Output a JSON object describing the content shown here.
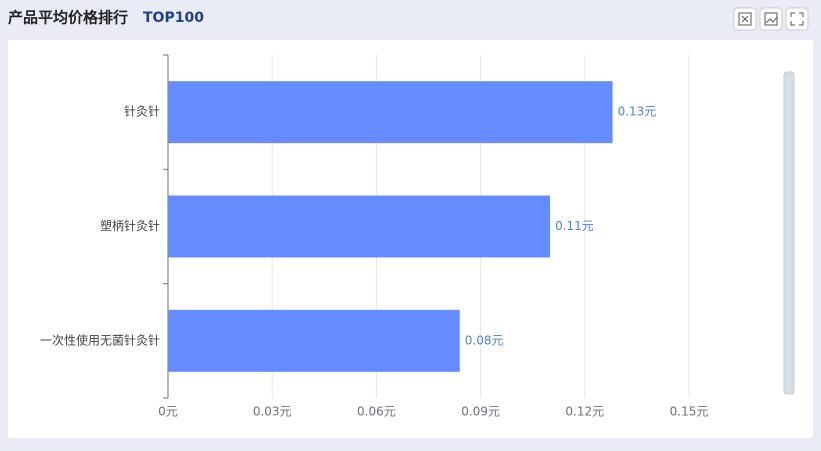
{
  "chart_data": {
    "type": "bar",
    "orientation": "horizontal",
    "title": "产品平均价格排行",
    "subtitle": "TOP100",
    "categories": [
      "针灸针",
      "塑柄针灸针",
      "一次性使用无菌针灸针"
    ],
    "values": [
      0.128,
      0.11,
      0.084
    ],
    "value_labels": [
      "0.13元",
      "0.11元",
      "0.08元"
    ],
    "color": "#648cff",
    "xlim": [
      0,
      0.15
    ],
    "xticks": [
      {
        "value": 0,
        "label": "0元"
      },
      {
        "value": 0.03,
        "label": "0.03元"
      },
      {
        "value": 0.06,
        "label": "0.06元"
      },
      {
        "value": 0.09,
        "label": "0.09元"
      },
      {
        "value": 0.12,
        "label": "0.12元"
      },
      {
        "value": 0.15,
        "label": "0.15元"
      }
    ],
    "grid": true
  }
}
